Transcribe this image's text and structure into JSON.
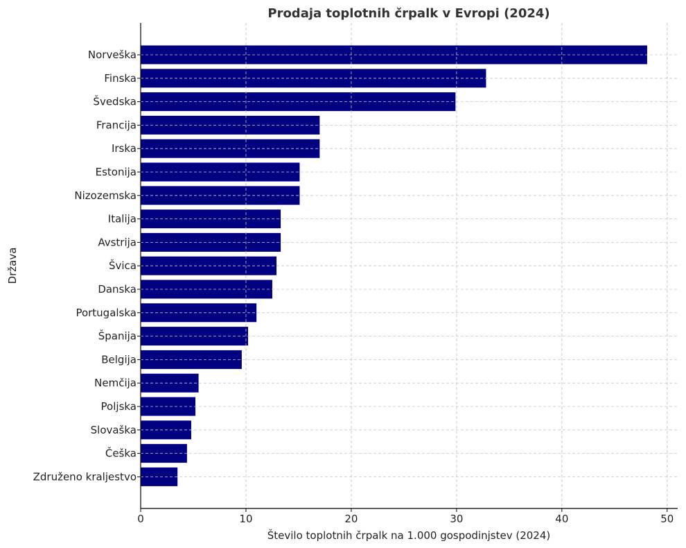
{
  "chart_data": {
    "type": "bar",
    "orientation": "horizontal",
    "title": "Prodaja toplotnih črpalk v Evropi (2024)",
    "xlabel": "Število toplotnih črpalk na 1.000 gospodinjstev (2024)",
    "ylabel": "Država",
    "xlim": [
      0,
      51
    ],
    "xticks": [
      0,
      10,
      20,
      30,
      40,
      50
    ],
    "grid": true,
    "bar_color": "#000080",
    "categories": [
      "Norveška",
      "Finska",
      "Švedska",
      "Francija",
      "Irska",
      "Estonija",
      "Nizozemska",
      "Italija",
      "Avstrija",
      "Švica",
      "Danska",
      "Portugalska",
      "Španija",
      "Belgija",
      "Nemčija",
      "Poljska",
      "Slovaška",
      "Češka",
      "Združeno kraljestvo"
    ],
    "values": [
      48.1,
      32.8,
      29.9,
      17.0,
      17.0,
      15.1,
      15.1,
      13.3,
      13.3,
      12.9,
      12.5,
      11.0,
      10.2,
      9.6,
      5.5,
      5.2,
      4.8,
      4.4,
      3.5
    ]
  }
}
